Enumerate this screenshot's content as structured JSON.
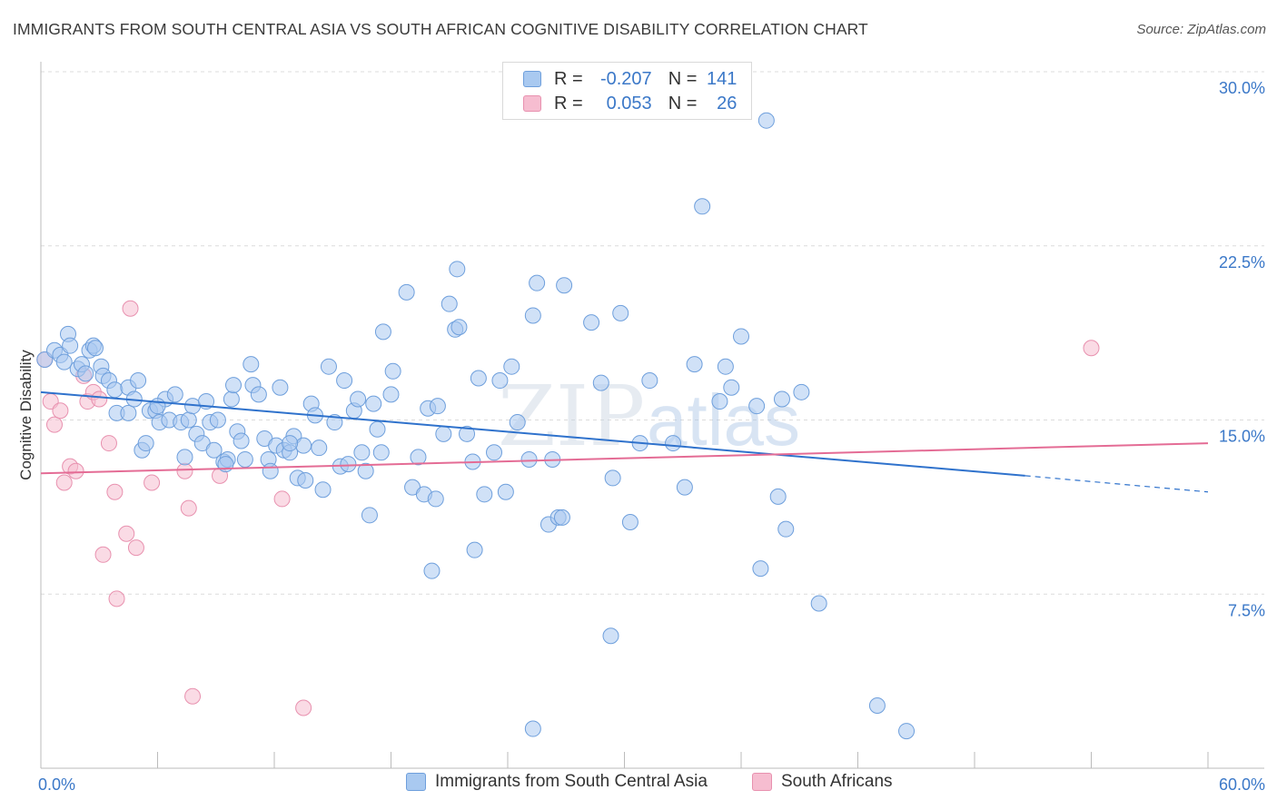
{
  "header": {
    "title": "IMMIGRANTS FROM SOUTH CENTRAL ASIA VS SOUTH AFRICAN COGNITIVE DISABILITY CORRELATION CHART",
    "source": "Source: ZipAtlas.com"
  },
  "watermark": {
    "zip": "ZIP",
    "atlas": "atlas"
  },
  "legend": {
    "rows": [
      {
        "r_label": "R =",
        "r_value": "-0.207",
        "n_label": "N =",
        "n_value": "141"
      },
      {
        "r_label": "R =",
        "r_value": "0.053",
        "n_label": "N =",
        "n_value": "26"
      }
    ]
  },
  "bottom_legend": {
    "series1": "Immigrants from South Central Asia",
    "series2": "South Africans"
  },
  "colors": {
    "blue_fill": "#a9c9f0",
    "blue_stroke": "#6e9fdc",
    "blue_line": "#2f72cc",
    "pink_fill": "#f6bdd0",
    "pink_stroke": "#e891af",
    "pink_line": "#e46c95",
    "axis_text": "#3b78c8",
    "grid": "#dcdcdc"
  },
  "chart_data": {
    "type": "scatter",
    "title": "IMMIGRANTS FROM SOUTH CENTRAL ASIA VS SOUTH AFRICAN COGNITIVE DISABILITY CORRELATION CHART",
    "xlabel": "",
    "ylabel": "Cognitive Disability",
    "xlim": [
      0,
      60
    ],
    "ylim": [
      0,
      30
    ],
    "x_tick_labels": [
      "0.0%",
      "60.0%"
    ],
    "y_ticks": [
      7.5,
      15.0,
      22.5,
      30.0
    ],
    "y_tick_labels": [
      "7.5%",
      "15.0%",
      "22.5%",
      "30.0%"
    ],
    "grid": "horizontal dashed",
    "legend_position": "top-center",
    "series": [
      {
        "name": "Immigrants from South Central Asia",
        "color": "#a9c9f0",
        "trend": {
          "x": [
            0,
            50.6
          ],
          "y": [
            16.2,
            12.6
          ],
          "dashed_to": [
            60,
            11.9
          ]
        },
        "points": [
          [
            0.2,
            17.6
          ],
          [
            0.7,
            18.0
          ],
          [
            1.0,
            17.8
          ],
          [
            1.2,
            17.5
          ],
          [
            1.4,
            18.7
          ],
          [
            1.5,
            18.2
          ],
          [
            1.9,
            17.2
          ],
          [
            2.1,
            17.4
          ],
          [
            2.3,
            17.0
          ],
          [
            2.5,
            18.0
          ],
          [
            2.7,
            18.2
          ],
          [
            3.1,
            17.3
          ],
          [
            3.2,
            16.9
          ],
          [
            3.5,
            16.7
          ],
          [
            3.8,
            16.3
          ],
          [
            3.9,
            15.3
          ],
          [
            4.5,
            16.4
          ],
          [
            4.5,
            15.3
          ],
          [
            4.8,
            15.9
          ],
          [
            5.0,
            16.7
          ],
          [
            5.2,
            13.7
          ],
          [
            5.4,
            14.0
          ],
          [
            5.6,
            15.4
          ],
          [
            5.9,
            15.4
          ],
          [
            6.1,
            14.9
          ],
          [
            6.4,
            15.9
          ],
          [
            6.6,
            15.0
          ],
          [
            6.9,
            16.1
          ],
          [
            7.2,
            14.9
          ],
          [
            7.4,
            13.4
          ],
          [
            7.6,
            15.0
          ],
          [
            7.8,
            15.6
          ],
          [
            8.0,
            14.4
          ],
          [
            8.3,
            14.0
          ],
          [
            8.5,
            15.8
          ],
          [
            8.7,
            14.9
          ],
          [
            8.9,
            13.7
          ],
          [
            9.1,
            15.0
          ],
          [
            9.4,
            13.2
          ],
          [
            9.6,
            13.3
          ],
          [
            9.8,
            15.9
          ],
          [
            9.9,
            16.5
          ],
          [
            10.1,
            14.5
          ],
          [
            10.3,
            14.1
          ],
          [
            10.5,
            13.3
          ],
          [
            10.8,
            17.4
          ],
          [
            10.9,
            16.5
          ],
          [
            11.2,
            16.1
          ],
          [
            11.5,
            14.2
          ],
          [
            11.7,
            13.3
          ],
          [
            11.8,
            12.8
          ],
          [
            12.1,
            13.9
          ],
          [
            12.3,
            16.4
          ],
          [
            12.5,
            13.7
          ],
          [
            12.8,
            13.6
          ],
          [
            13.0,
            14.3
          ],
          [
            13.2,
            12.5
          ],
          [
            13.5,
            13.9
          ],
          [
            13.6,
            12.4
          ],
          [
            13.9,
            15.7
          ],
          [
            14.1,
            15.2
          ],
          [
            14.3,
            13.8
          ],
          [
            14.5,
            12.0
          ],
          [
            14.8,
            17.3
          ],
          [
            15.1,
            14.9
          ],
          [
            15.4,
            13.0
          ],
          [
            15.6,
            16.7
          ],
          [
            15.8,
            13.1
          ],
          [
            16.1,
            15.4
          ],
          [
            16.3,
            15.9
          ],
          [
            16.5,
            13.6
          ],
          [
            16.7,
            12.8
          ],
          [
            16.9,
            10.9
          ],
          [
            17.1,
            15.7
          ],
          [
            17.3,
            14.6
          ],
          [
            17.6,
            18.8
          ],
          [
            18.0,
            16.1
          ],
          [
            18.1,
            17.1
          ],
          [
            18.8,
            20.5
          ],
          [
            19.1,
            12.1
          ],
          [
            19.4,
            13.4
          ],
          [
            19.7,
            11.8
          ],
          [
            19.9,
            15.5
          ],
          [
            20.1,
            8.5
          ],
          [
            20.3,
            11.6
          ],
          [
            20.4,
            15.6
          ],
          [
            20.7,
            14.4
          ],
          [
            21.0,
            20.0
          ],
          [
            21.3,
            18.9
          ],
          [
            21.4,
            21.5
          ],
          [
            21.5,
            19.0
          ],
          [
            21.9,
            14.4
          ],
          [
            22.2,
            13.2
          ],
          [
            22.3,
            9.4
          ],
          [
            22.5,
            16.8
          ],
          [
            22.8,
            11.8
          ],
          [
            23.3,
            13.6
          ],
          [
            23.6,
            16.7
          ],
          [
            23.9,
            11.9
          ],
          [
            24.2,
            17.3
          ],
          [
            24.5,
            14.9
          ],
          [
            25.1,
            13.3
          ],
          [
            25.3,
            19.5
          ],
          [
            25.5,
            20.9
          ],
          [
            26.1,
            10.5
          ],
          [
            26.6,
            10.8
          ],
          [
            26.8,
            10.8
          ],
          [
            26.9,
            20.8
          ],
          [
            28.3,
            19.2
          ],
          [
            28.8,
            16.6
          ],
          [
            29.3,
            5.7
          ],
          [
            29.4,
            12.5
          ],
          [
            29.8,
            19.6
          ],
          [
            30.3,
            10.6
          ],
          [
            30.8,
            14.0
          ],
          [
            31.3,
            16.7
          ],
          [
            32.5,
            14.0
          ],
          [
            33.1,
            12.1
          ],
          [
            33.6,
            17.4
          ],
          [
            34.0,
            24.2
          ],
          [
            34.9,
            15.8
          ],
          [
            35.2,
            17.3
          ],
          [
            35.5,
            16.4
          ],
          [
            36.0,
            18.6
          ],
          [
            36.8,
            15.6
          ],
          [
            37.0,
            8.6
          ],
          [
            37.3,
            27.9
          ],
          [
            37.9,
            11.7
          ],
          [
            38.1,
            15.9
          ],
          [
            38.3,
            10.3
          ],
          [
            39.1,
            16.2
          ],
          [
            40.0,
            7.1
          ],
          [
            43.0,
            2.7
          ],
          [
            44.5,
            1.6
          ],
          [
            25.3,
            1.7
          ],
          [
            6.0,
            15.6
          ],
          [
            12.8,
            14.0
          ],
          [
            2.8,
            18.1
          ],
          [
            9.5,
            13.1
          ],
          [
            17.5,
            13.6
          ],
          [
            26.3,
            13.3
          ]
        ]
      },
      {
        "name": "South Africans",
        "color": "#f6bdd0",
        "trend": {
          "x": [
            0,
            60
          ],
          "y": [
            12.7,
            14.0
          ]
        },
        "points": [
          [
            0.2,
            17.6
          ],
          [
            0.5,
            15.8
          ],
          [
            0.7,
            14.8
          ],
          [
            1.0,
            15.4
          ],
          [
            1.2,
            12.3
          ],
          [
            1.5,
            13.0
          ],
          [
            1.8,
            12.8
          ],
          [
            2.2,
            16.9
          ],
          [
            2.4,
            15.8
          ],
          [
            2.7,
            16.2
          ],
          [
            3.0,
            15.9
          ],
          [
            3.2,
            9.2
          ],
          [
            3.5,
            14.0
          ],
          [
            3.8,
            11.9
          ],
          [
            3.9,
            7.3
          ],
          [
            4.4,
            10.1
          ],
          [
            4.6,
            19.8
          ],
          [
            4.9,
            9.5
          ],
          [
            5.7,
            12.3
          ],
          [
            7.4,
            12.8
          ],
          [
            7.6,
            11.2
          ],
          [
            7.8,
            3.1
          ],
          [
            9.2,
            12.6
          ],
          [
            12.4,
            11.6
          ],
          [
            13.5,
            2.6
          ],
          [
            54.0,
            18.1
          ]
        ]
      }
    ]
  }
}
